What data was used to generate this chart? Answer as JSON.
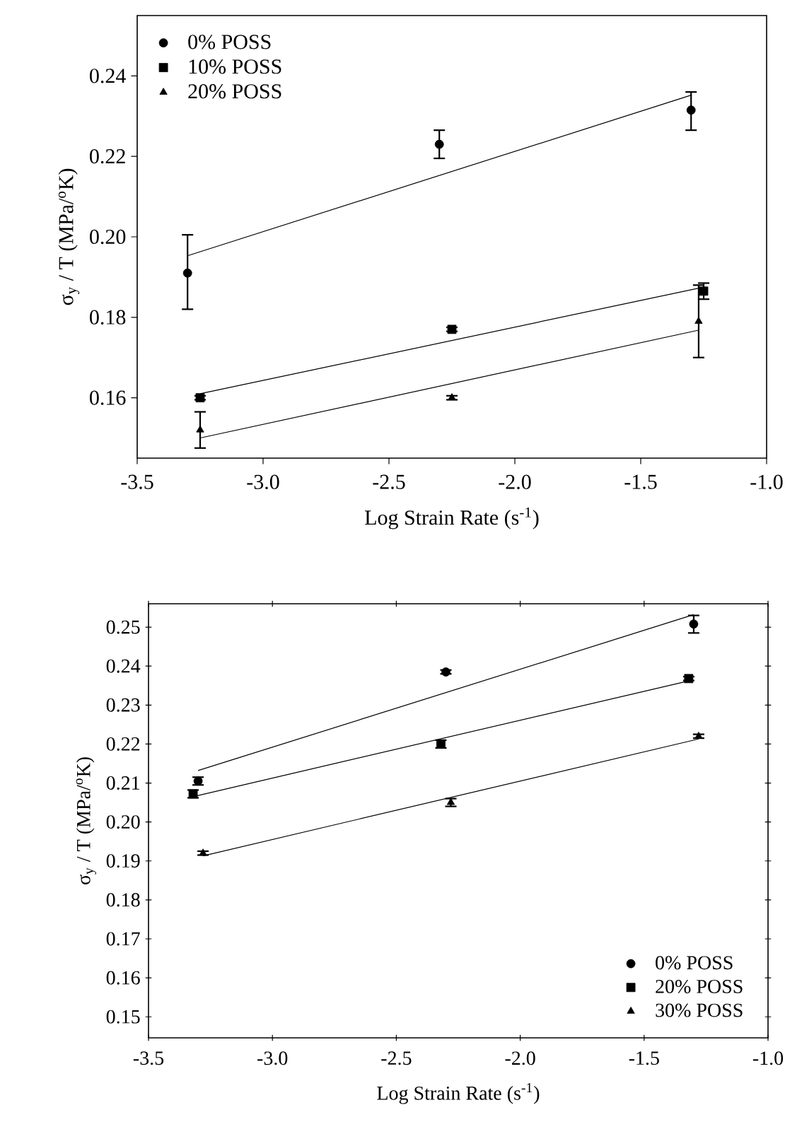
{
  "chart_data": [
    {
      "type": "scatter",
      "xlabel": "Log Strain Rate (s$^{-1}$)",
      "ylabel": "σ$_{y}$ / T (MPa/$^{o}$K)",
      "xlim": [
        -3.5,
        -1.0
      ],
      "ylim": [
        0.145,
        0.255
      ],
      "xticks": [
        -3.5,
        {
          "value": -3.0,
          "label": "-3.0"
        },
        -2.5,
        {
          "value": -2.0,
          "label": "-2.0"
        },
        -1.5,
        {
          "value": -1.0,
          "label": "-1.0"
        }
      ],
      "yticks": [
        0.16,
        0.18,
        {
          "value": 0.2,
          "label": "0.20"
        },
        0.22,
        0.24
      ],
      "legend": "top left",
      "series": [
        {
          "name": "0% POSS",
          "color": "#000000",
          "marker": "circle",
          "x": [
            -3.3,
            -2.3,
            -1.3
          ],
          "values": [
            0.191,
            0.223,
            0.2315
          ],
          "errors": [
            [
              0.182,
              0.2005
            ],
            [
              0.2195,
              0.2265
            ],
            [
              0.2265,
              0.236
            ]
          ]
        },
        {
          "name": "10% POSS",
          "color": "#000000",
          "marker": "square",
          "x": [
            -3.25,
            -2.25,
            -1.25
          ],
          "values": [
            0.16,
            0.177,
            0.1865
          ],
          "errors": [
            0.0005,
            0.0005,
            [
              0.1845,
              0.1885
            ]
          ]
        },
        {
          "name": "20% POSS",
          "color": "#000000",
          "marker": "triangle",
          "x": [
            -3.25,
            -2.25,
            -1.27
          ],
          "values": [
            0.152,
            0.16,
            0.179
          ],
          "errors": [
            [
              0.1475,
              0.1565
            ],
            0.0005,
            [
              0.17,
              0.188
            ]
          ]
        },
        {
          "type": "line",
          "color": "#000000",
          "x": [
            -3.3,
            -1.3
          ],
          "values": [
            0.1953,
            0.2352
          ]
        },
        {
          "type": "line",
          "color": "#000000",
          "x": [
            -3.25,
            -1.25
          ],
          "values": [
            0.161,
            0.1875
          ]
        },
        {
          "type": "line",
          "color": "#000000",
          "x": [
            -3.25,
            -1.27
          ],
          "values": [
            0.15,
            0.1768
          ]
        }
      ]
    },
    {
      "type": "scatter",
      "xlabel": "Log Strain Rate (s$^{-1}$)",
      "ylabel": "σ$_{y}$ / T (MPa/$^{o}$K)",
      "xlim": [
        -3.5,
        -1.0
      ],
      "ylim": [
        0.1446,
        0.256
      ],
      "xticks": [
        -3.5,
        {
          "value": -3.0,
          "label": "-3.0"
        },
        -2.5,
        {
          "value": -2.0,
          "label": "-2.0"
        },
        -1.5,
        {
          "value": -1.0,
          "label": "-1.0"
        }
      ],
      "yticks": [
        0.15,
        0.16,
        0.17,
        0.18,
        0.19,
        {
          "value": 0.2,
          "label": "0.20"
        },
        0.21,
        0.22,
        0.23,
        0.24,
        0.25
      ],
      "legend": "bottom right",
      "series": [
        {
          "name": "0% POSS",
          "color": "#000000",
          "marker": "circle",
          "x": [
            -3.3,
            -2.3,
            -1.3
          ],
          "values": [
            0.2105,
            0.2385,
            0.2508
          ],
          "errors": [
            0.001,
            0.0005,
            [
              0.2485,
              0.253
            ]
          ]
        },
        {
          "name": "20% POSS",
          "color": "#000000",
          "marker": "square",
          "x": [
            -3.32,
            -2.32,
            -1.32
          ],
          "values": [
            0.2072,
            0.22,
            0.2368
          ],
          "errors": [
            0.001,
            0.001,
            0.0005
          ]
        },
        {
          "name": "30% POSS",
          "color": "#000000",
          "marker": "triangle",
          "x": [
            -3.28,
            -2.28,
            -1.28
          ],
          "values": [
            0.192,
            0.205,
            0.222
          ],
          "errors": [
            0.0005,
            0.001,
            0.0005
          ]
        },
        {
          "type": "line",
          "color": "#000000",
          "x": [
            -3.3,
            -1.3
          ],
          "values": [
            0.2132,
            0.2532
          ]
        },
        {
          "type": "line",
          "color": "#000000",
          "x": [
            -3.32,
            -1.32
          ],
          "values": [
            0.2065,
            0.2362
          ]
        },
        {
          "type": "line",
          "color": "#000000",
          "x": [
            -3.28,
            -1.28
          ],
          "values": [
            0.1913,
            0.2213
          ]
        }
      ]
    }
  ]
}
